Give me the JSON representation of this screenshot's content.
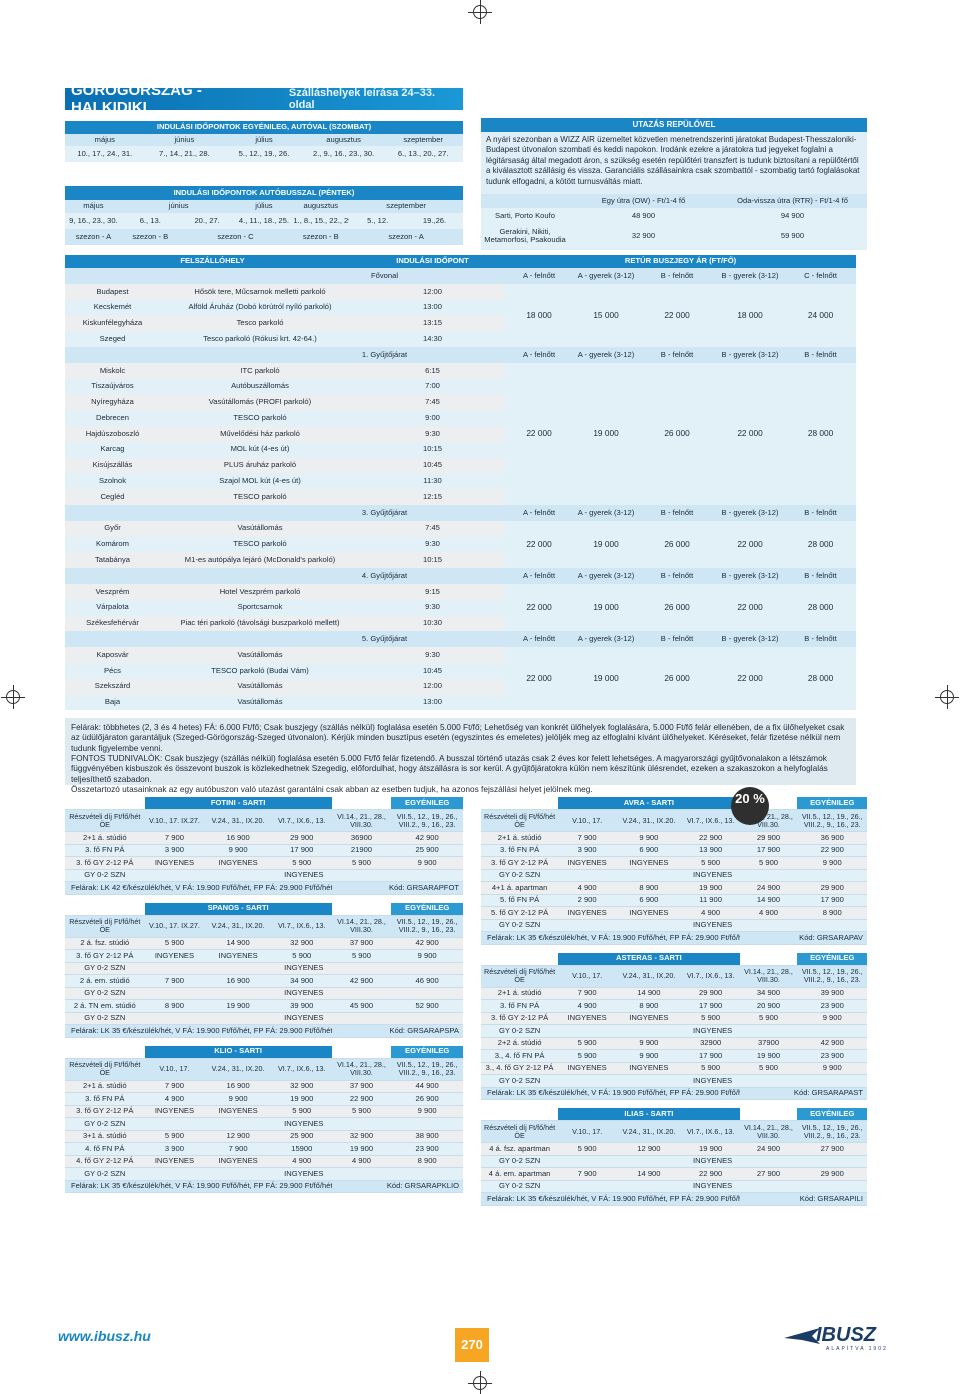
{
  "header": {
    "title": "GÖRÖGORSZÁG - HALKIDIKI",
    "subtitle": "Szálláshelyek leírása 24–33. oldal"
  },
  "car": {
    "title": "INDULÁSI IDŐPONTOK EGYÉNILEG, AUTÓVAL (SZOMBAT)",
    "months": [
      "május",
      "június",
      "július",
      "augusztus",
      "szeptember"
    ],
    "dates": [
      "10., 17., 24., 31.",
      "7., 14., 21., 28.",
      "5., 12., 19., 26.",
      "2., 9., 16., 23., 30.",
      "6., 13., 20., 27."
    ]
  },
  "bus": {
    "title": "INDULÁSI IDŐPONTOK AUTÓBUSSZAL (PÉNTEK)",
    "months": [
      "május",
      "június",
      "július",
      "augusztus",
      "szeptember"
    ],
    "dates": [
      "9, 16., 23., 30.",
      "6., 13.",
      "20., 27.",
      "4., 11., 18., 25.",
      "1., 8., 15., 22., 29.",
      "5., 12.",
      "19.,26."
    ],
    "seasons": [
      "szezon - A",
      "szezon - B",
      "szezon - C",
      "szezon - B",
      "szezon - A"
    ]
  },
  "flight": {
    "title": "UTAZÁS REPÜLŐVEL",
    "text": "A nyári szezonban a WIZZ AIR üzemeltet közvetlen menetrendszerinti járatokat Budapest-Thesszaloniki-Budapest útvonalon szombati és keddi napokon. Irodánk ezekre a járatokra tud jegyeket foglalni a légitársaság által megadott áron, s szükség esetén repülőtéri transzfert is tudunk biztosítani a repülőtértől a kiválasztott szállásig és vissza. Garanciális szállásainkra csak szombattól - szombatig tartó foglalásokat tudunk elfogadni, a kötött turnusváltás miatt.",
    "col1": "Egy útra (OW) - Ft/1-4 fő",
    "col2": "Oda-vissza útra (RTR) - Ft/1-4 fő",
    "rows": [
      {
        "place": "Sarti, Porto Koufo",
        "ow": "48 900",
        "rtr": "94 900"
      },
      {
        "place": "Gerakini, Nikiti, Metamorfosi, Psakoudia",
        "ow": "32 900",
        "rtr": "59 900"
      }
    ]
  },
  "stops": {
    "h1": "FELSZÁLLÓHELY",
    "h2": "INDULÁSI IDŐPONT",
    "h3": "RETÚR BUSZJEGY ÁR (FT/FŐ)"
  },
  "groups": [
    {
      "name": "Fővonal",
      "cols": [
        "A - felnőtt",
        "A - gyerek (3-12)",
        "B - felnőtt",
        "B - gyerek (3-12)",
        "C - felnőtt",
        "C - gyerek (3-12)"
      ],
      "prices": [
        "18 000",
        "15 000",
        "22 000",
        "18 000",
        "24 000",
        "20 000"
      ],
      "rows": [
        [
          "Budapest",
          "Hősök tere, Műcsarnok melletti parkoló",
          "12:00"
        ],
        [
          "Kecskemét",
          "Alföld Áruház (Dobó körútról nyíló parkoló)",
          "13:00"
        ],
        [
          "Kiskunfélegyháza",
          "Tesco parkoló",
          "13:15"
        ],
        [
          "Szeged",
          "Tesco parkoló (Rókusi krt. 42-64.)",
          "14:30"
        ]
      ]
    },
    {
      "name": "1. Gyűjtőjárat",
      "cols": [
        "A - felnőtt",
        "A - gyerek (3-12)",
        "B - felnőtt",
        "B - gyerek (3-12)",
        "B - felnőtt",
        "B - gyerek (3-12)"
      ],
      "prices": [
        "22 000",
        "19 000",
        "26 000",
        "22 000",
        "28 000",
        "24 000"
      ],
      "rows": [
        [
          "Miskolc",
          "ITC parkoló",
          "6:15"
        ],
        [
          "Tiszaújváros",
          "Autóbuszállomás",
          "7:00"
        ],
        [
          "Nyíregyháza",
          "Vasútállomás (PROFI parkoló)",
          "7:45"
        ],
        [
          "Debrecen",
          "TESCO parkoló",
          "9:00"
        ],
        [
          "Hajdúszoboszló",
          "Művelődési ház parkoló",
          "9:30"
        ],
        [
          "Karcag",
          "MOL kút (4-es út)",
          "10:15"
        ],
        [
          "Kisújszállás",
          "PLUS áruház parkoló",
          "10:45"
        ],
        [
          "Szolnok",
          "Szajol MOL kút (4-es út)",
          "11:30"
        ],
        [
          "Cegléd",
          "TESCO parkoló",
          "12:15"
        ]
      ]
    },
    {
      "name": "3. Gyűjtőjárat",
      "cols": [
        "A - felnőtt",
        "A - gyerek (3-12)",
        "B - felnőtt",
        "B - gyerek (3-12)",
        "B - felnőtt",
        "B - gyerek (3-12)"
      ],
      "prices": [
        "22 000",
        "19 000",
        "26 000",
        "22 000",
        "28 000",
        "24 000"
      ],
      "rows": [
        [
          "Győr",
          "Vasútállomás",
          "7:45"
        ],
        [
          "Komárom",
          "TESCO parkoló",
          "9:30"
        ],
        [
          "Tatabánya",
          "M1-es autópálya lejáró (McDonald's parkoló)",
          "10:15"
        ]
      ]
    },
    {
      "name": "4. Gyűjtőjárat",
      "cols": [
        "A - felnőtt",
        "A - gyerek (3-12)",
        "B - felnőtt",
        "B - gyerek (3-12)",
        "B - felnőtt",
        "B - gyerek (3-12)"
      ],
      "prices": [
        "22 000",
        "19 000",
        "26 000",
        "22 000",
        "28 000",
        "24 000"
      ],
      "rows": [
        [
          "Veszprém",
          "Hotel Veszprém parkoló",
          "9:15"
        ],
        [
          "Várpalota",
          "Sportcsarnok",
          "9:30"
        ],
        [
          "Székesfehérvár",
          "Piac téri parkoló (távolsági buszparkoló mellett)",
          "10:30"
        ]
      ]
    },
    {
      "name": "5. Gyűjtőjárat",
      "cols": [
        "A - felnőtt",
        "A - gyerek (3-12)",
        "B - felnőtt",
        "B - gyerek (3-12)",
        "B - felnőtt",
        "B - gyerek (3-12)"
      ],
      "prices": [
        "22 000",
        "19 000",
        "26 000",
        "22 000",
        "28 000",
        "24 000"
      ],
      "rows": [
        [
          "Kaposvár",
          "Vasútállomás",
          "9:30"
        ],
        [
          "Pécs",
          "TESCO parkoló (Budai Vám)",
          "10:45"
        ],
        [
          "Szekszárd",
          "Vasútállomás",
          "12:00"
        ],
        [
          "Baja",
          "Vasútállomás",
          "13:00"
        ]
      ]
    }
  ],
  "notes": {
    "l1": "Felárak: többhetes (2, 3 és 4 hetes) FÁ: 6.000 Ft/fő; Csak buszjegy (szállás nélkül) foglalása esetén 5.000 Ft/fő; Lehetőség van konkrét ülőhelyek foglalására, 5.000 Ft/fő felár ellenében, de a fix ülőhelyeket csak az üdülőjáraton garantáljuk (Szeged-Görögország-Szeged útvonalon). Kérjük minden busztípus esetén (egyszintes és emeletes) jelöljék meg az elfoglalni kívánt ülőhelyeket. Kéréseket, felár fizetése nélkül nem tudunk figyelembe venni.",
    "l2": "FONTOS TUDNIVALÓK: Csak buszjegy (szállás nélkül) foglalása esetén 5.000 Ft/fő felár fizetendő. A busszal történő utazás csak 2 éves kor felett lehetséges. A magyarországi gyűjtővonalakon a létszámok függvényében kisbuszok és összevont buszok is közlekedhetnek Szegedig, előfordulhat, hogy átszállásra is sor kerül. A gyűjtőjáratokra külön nem készítünk ülésrendet, ezeken a szakaszokon a helyfoglalás teljesíthető szabadon.",
    "l3": "Összetartozó utasainknak az egy autóbuszon való utazást garantálni csak abban az esetben tudjuk, ha azonos fejszállási helyet jelölnek meg."
  },
  "left_hotels": [
    {
      "name": "FOTINI - SARTI",
      "tag": "EGYÉNILEG",
      "head": [
        "Részvételi díj Ft/fő/hét ÖE",
        "V.10., 17. IX.27.",
        "V.24., 31., IX.20.",
        "VI.7., IX.6., 13.",
        "VI.14., 21., 28., VIII.30.",
        "VII.5., 12., 19., 26., VIII.2., 9., 16., 23."
      ],
      "rows": [
        [
          "2+1 á. stúdió",
          "7 900",
          "16 900",
          "29 900",
          "36900",
          "42 900"
        ],
        [
          "3. fő FN PÁ",
          "3 900",
          "9 900",
          "17 900",
          "21900",
          "25 900"
        ],
        [
          "3. fő GY 2-12 PÁ",
          "INGYENES",
          "INGYENES",
          "5 900",
          "5 900",
          "9 900"
        ],
        [
          "GY 0-2 SZN",
          "INGYENES"
        ]
      ],
      "foot": "Felárak: LK 42 €/készülék/hét, V FÁ: 19.900 Ft/fő/hét, FP FÁ: 29.900 Ft/fő/hét",
      "code": "Kód: GRSARAPFOT"
    },
    {
      "name": "SPANOS - SARTI",
      "tag": "EGYÉNILEG",
      "head": [
        "Részvételi díj Ft/fő/hét ÖE",
        "V.10., 17. IX.27.",
        "V.24., 31., IX.20.",
        "VI.7., IX.6., 13.",
        "VI.14., 21., 28., VIII.30.",
        "VII.5., 12., 19., 26., VIII.2., 9., 16., 23."
      ],
      "rows": [
        [
          "2 á. fsz. stúdió",
          "5 900",
          "14 900",
          "32 900",
          "37 900",
          "42 900"
        ],
        [
          "3. fő GY 2-12 PÁ",
          "INGYENES",
          "INGYENES",
          "5 900",
          "5 900",
          "9 900"
        ],
        [
          "GY 0-2 SZN",
          "INGYENES"
        ],
        [
          "2 á. em. stúdió",
          "7 900",
          "16 900",
          "34 900",
          "42 900",
          "46 900"
        ],
        [
          "GY 0-2 SZN",
          "INGYENES"
        ],
        [
          "2 á. TN em. stúdió",
          "8 900",
          "19 900",
          "39 900",
          "45 900",
          "52 900"
        ],
        [
          "GY 0-2 SZN",
          "INGYENES"
        ]
      ],
      "foot": "Felárak: LK 35 €/készülék/hét, V FÁ: 19.900 Ft/fő/hét, FP FÁ: 29.900 Ft/fő/hét",
      "code": "Kód: GRSARAPSPA"
    },
    {
      "name": "KLIO - SARTI",
      "tag": "EGYÉNILEG",
      "head": [
        "Részvételi díj Ft/fő/hét ÖE",
        "V.10., 17.",
        "V.24., 31., IX.20.",
        "VI.7., IX.6., 13.",
        "VI.14., 21., 28., VIII.30.",
        "VII.5., 12., 19., 26., VIII.2., 9., 16., 23."
      ],
      "rows": [
        [
          "2+1 á. stúdió",
          "7 900",
          "16 900",
          "32 900",
          "37 900",
          "44 900"
        ],
        [
          "3. fő FN PÁ",
          "4 900",
          "9 900",
          "19 900",
          "22 900",
          "26 900"
        ],
        [
          "3. fő GY 2-12 PÁ",
          "INGYENES",
          "INGYENES",
          "5 900",
          "5 900",
          "9 900"
        ],
        [
          "GY 0-2 SZN",
          "INGYENES"
        ],
        [
          "3+1 á. stúdió",
          "5 900",
          "12 900",
          "25 900",
          "32 900",
          "38 900"
        ],
        [
          "4. fő FN PÁ",
          "3 900",
          "7 900",
          "15900",
          "19 900",
          "23 900"
        ],
        [
          "4. fő GY 2-12 PÁ",
          "INGYENES",
          "INGYENES",
          "4 900",
          "4 900",
          "8 900"
        ],
        [
          "GY 0-2 SZN",
          "INGYENES"
        ]
      ],
      "foot": "Felárak: LK 35 €/készülék/hét, V FÁ: 19.900 Ft/fő/hét, FP FÁ: 29.900 Ft/fő/hét",
      "code": "Kód: GRSARAPKLIO"
    }
  ],
  "right_hotels": [
    {
      "name": "AVRA - SARTI",
      "tag": "EGYÉNILEG",
      "badge": "20 %",
      "head": [
        "Részvételi díj Ft/fő/hét ÖE",
        "V.10., 17.",
        "V.24., 31., IX.20.",
        "VI.7., IX.6., 13.",
        "VI.14., 21., 28., VIII.30.",
        "VII.5., 12., 19., 26., VIII.2., 9., 16., 23."
      ],
      "rows": [
        [
          "2+1 á. stúdió",
          "7 900",
          "9 900",
          "22 900",
          "29 900",
          "36 900"
        ],
        [
          "3. fő FN PÁ",
          "3 900",
          "6 900",
          "13 900",
          "17 900",
          "22 900"
        ],
        [
          "3. fő GY 2-12 PÁ",
          "INGYENES",
          "INGYENES",
          "5 900",
          "5 900",
          "9 900"
        ],
        [
          "GY 0-2 SZN",
          "INGYENES"
        ],
        [
          "4+1 á. apartman",
          "4 900",
          "8 900",
          "19 900",
          "24 900",
          "29 900"
        ],
        [
          "5. fő FN PÁ",
          "2 900",
          "6 900",
          "11 900",
          "14 900",
          "17 900"
        ],
        [
          "5. fő GY 2-12 PÁ",
          "INGYENES",
          "INGYENES",
          "4 900",
          "4 900",
          "8 900"
        ],
        [
          "GY 0-2 SZN",
          "INGYENES"
        ]
      ],
      "foot": "Felárak: LK 35 €/készülék/hét, V FÁ: 19.900 Ft/fő/hét, FP FÁ: 29.900 Ft/fő/hét",
      "code": "Kód: GRSARAPAV"
    },
    {
      "name": "ASTERAS - SARTI",
      "tag": "EGYÉNILEG",
      "head": [
        "Részvételi díj Ft/fő/hét ÖE",
        "V.10., 17.",
        "V.24., 31., IX.20.",
        "VI.7., IX.6., 13.",
        "VI.14., 21., 28., VIII.30.",
        "VII.5., 12., 19., 26., VIII.2., 9., 16., 23."
      ],
      "rows": [
        [
          "2+1 á. stúdió",
          "7 900",
          "14 900",
          "29 900",
          "34 900",
          "39 900"
        ],
        [
          "3. fő FN PÁ",
          "4 900",
          "8 900",
          "17 900",
          "20 900",
          "23 900"
        ],
        [
          "3. fő GY 2-12 PÁ",
          "INGYENES",
          "INGYENES",
          "5 900",
          "5 900",
          "9 900"
        ],
        [
          "GY 0-2 SZN",
          "INGYENES"
        ],
        [
          "2+2 á. stúdió",
          "5 900",
          "9 900",
          "32900",
          "37900",
          "42 900"
        ],
        [
          "3., 4. fő FN PÁ",
          "5 900",
          "9 900",
          "17 900",
          "19 900",
          "23 900"
        ],
        [
          "3., 4. fő GY 2-12 PÁ",
          "INGYENES",
          "INGYENES",
          "5 900",
          "5 900",
          "9 900"
        ],
        [
          "GY 0-2 SZN",
          "INGYENES"
        ]
      ],
      "foot": "Felárak: LK 35 €/készülék/hét, V FÁ: 19.900 Ft/fő/hét, FP FÁ: 29.900 Ft/fő/hét",
      "code": "Kód: GRSARAPAST"
    },
    {
      "name": "ILIAS - SARTI",
      "tag": "EGYÉNILEG",
      "head": [
        "Részvételi díj Ft/fő/hét ÖE",
        "V.10., 17.",
        "V.24., 31., IX.20.",
        "VI.7., IX.6., 13.",
        "VI.14., 21., 28., VIII.30.",
        "VII.5., 12., 19., 26., VIII.2., 9., 16., 23."
      ],
      "rows": [
        [
          "4 á. fsz. apartman",
          "5 900",
          "12 900",
          "19 900",
          "24 900",
          "27 900"
        ],
        [
          "GY 0-2 SZN",
          "INGYENES"
        ],
        [
          "4 á. em. apartman",
          "7 900",
          "14 900",
          "22 900",
          "27 900",
          "29 900"
        ],
        [
          "GY 0-2 SZN",
          "INGYENES"
        ]
      ],
      "foot": "Felárak: LK 35 €/készülék/hét, V FÁ: 19.900 Ft/fő/hét, FP FÁ: 29.900 Ft/fő/hét",
      "code": "Kód: GRSARAPILI"
    }
  ],
  "footer": {
    "url": "www.ibusz.hu",
    "page": "270",
    "logo": "IBUSZ",
    "logo_sub": "ALAPÍTVA 1902"
  },
  "colors": {
    "primary": "#1a86c6",
    "light": "#cfe7f4",
    "page_badge": "#f6a623"
  }
}
